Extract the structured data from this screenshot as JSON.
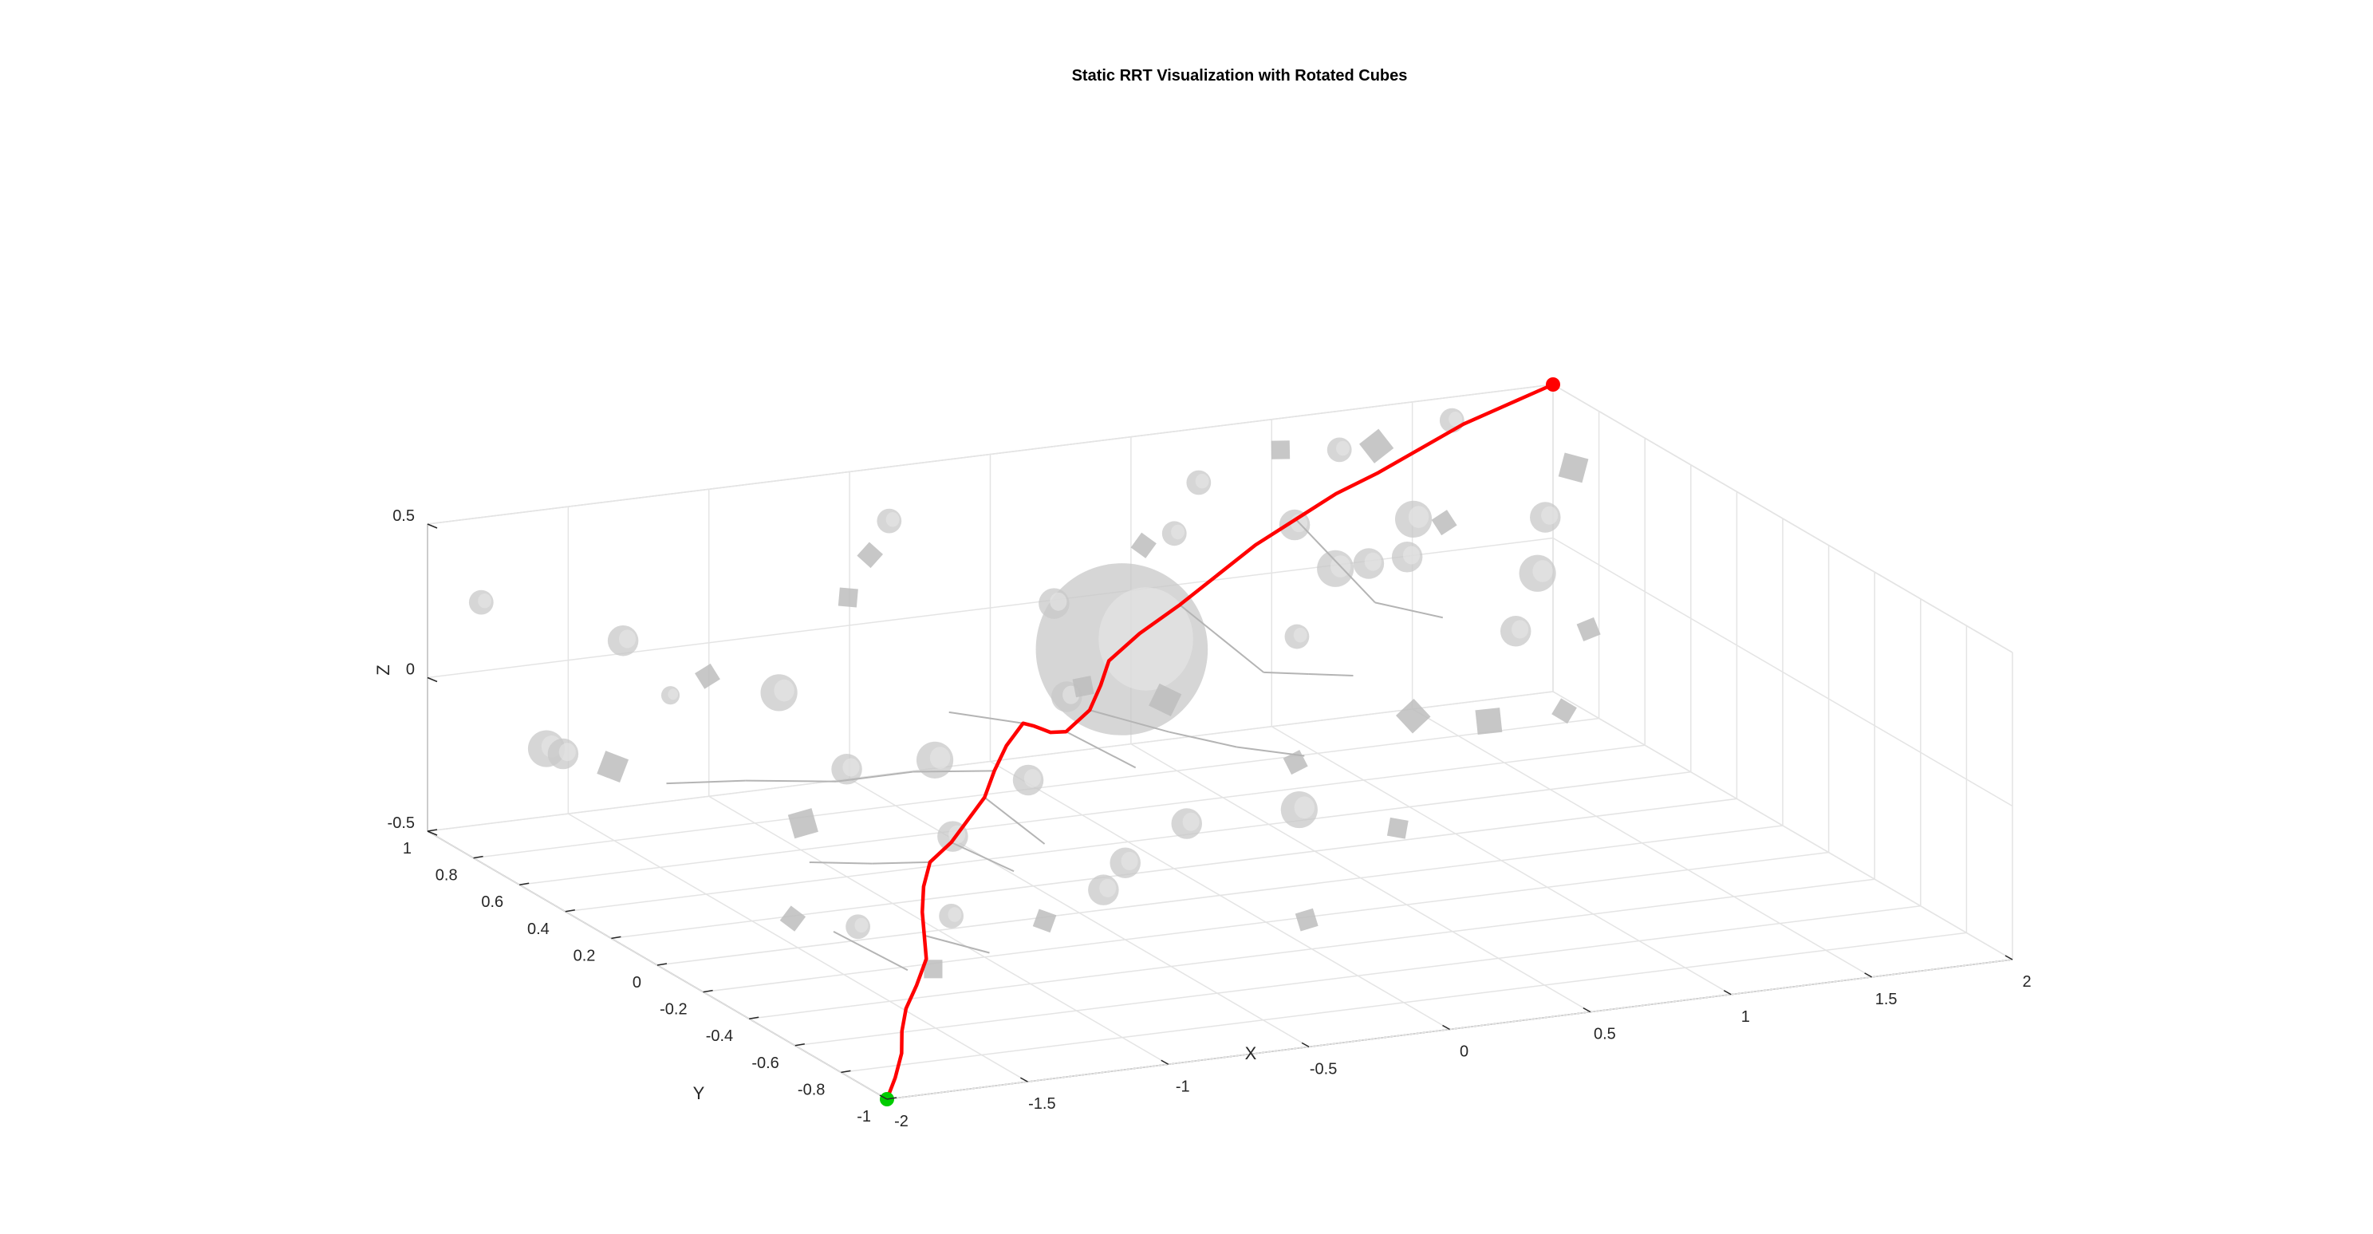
{
  "chart_data": {
    "type": "scatter",
    "title": "Static RRT Visualization with Rotated Cubes",
    "xlabel": "X",
    "ylabel": "Y",
    "zlabel": "Z",
    "xlim": [
      -2,
      2
    ],
    "ylim": [
      -1,
      1
    ],
    "zlim": [
      -0.5,
      0.5
    ],
    "x_ticks": [
      "-2",
      "-1.5",
      "-1",
      "-0.5",
      "0",
      "0.5",
      "1",
      "1.5",
      "2"
    ],
    "y_ticks": [
      "-1",
      "-0.8",
      "-0.6",
      "-0.4",
      "-0.2",
      "0",
      "0.2",
      "0.4",
      "0.6",
      "0.8",
      "1"
    ],
    "z_ticks": [
      "-0.5",
      "0",
      "0.5"
    ],
    "grid": true,
    "start": {
      "x": -2,
      "y": -1,
      "z": -0.5,
      "color": "#00cc00"
    },
    "goal": {
      "x": 2,
      "y": 1,
      "z": 0.5,
      "color": "#ff0000"
    },
    "path_color": "#ff0000",
    "tree_color": "#b4b4b4",
    "obstacle_color": "#c8c8c8",
    "path": [
      [
        -2.0,
        -1.0,
        -0.5
      ],
      [
        -1.93,
        -0.95,
        -0.46
      ],
      [
        -1.85,
        -0.88,
        -0.42
      ],
      [
        -1.8,
        -0.82,
        -0.38
      ],
      [
        -1.72,
        -0.74,
        -0.35
      ],
      [
        -1.65,
        -0.7,
        -0.3
      ],
      [
        -1.55,
        -0.62,
        -0.26
      ],
      [
        -1.5,
        -0.55,
        -0.22
      ],
      [
        -1.45,
        -0.48,
        -0.18
      ],
      [
        -1.38,
        -0.4,
        -0.14
      ],
      [
        -1.3,
        -0.33,
        -0.1
      ],
      [
        -1.2,
        -0.3,
        -0.06
      ],
      [
        -1.1,
        -0.25,
        -0.02
      ],
      [
        -1.0,
        -0.2,
        0.02
      ],
      [
        -0.9,
        -0.12,
        0.06
      ],
      [
        -0.8,
        -0.05,
        0.1
      ],
      [
        -0.7,
        0.0,
        0.14
      ],
      [
        -0.62,
        0.05,
        0.1
      ],
      [
        -0.55,
        0.1,
        0.06
      ],
      [
        -0.48,
        0.15,
        0.02
      ],
      [
        -0.4,
        0.18,
        0.0
      ],
      [
        -0.3,
        0.2,
        0.05
      ],
      [
        -0.22,
        0.25,
        0.1
      ],
      [
        -0.15,
        0.3,
        0.15
      ],
      [
        0.0,
        0.35,
        0.2
      ],
      [
        0.2,
        0.42,
        0.24
      ],
      [
        0.4,
        0.5,
        0.28
      ],
      [
        0.6,
        0.58,
        0.32
      ],
      [
        0.8,
        0.65,
        0.35
      ],
      [
        1.0,
        0.72,
        0.38
      ],
      [
        1.2,
        0.78,
        0.4
      ],
      [
        1.4,
        0.84,
        0.43
      ],
      [
        1.6,
        0.9,
        0.46
      ],
      [
        1.8,
        0.95,
        0.48
      ],
      [
        2.0,
        1.0,
        0.5
      ]
    ],
    "tree_branches": [
      [
        [
          -1.3,
          -0.33,
          -0.1
        ],
        [
          -1.4,
          -0.2,
          -0.15
        ]
      ],
      [
        [
          -1.4,
          -0.2,
          -0.15
        ],
        [
          -1.5,
          -0.05,
          -0.2
        ]
      ],
      [
        [
          -1.2,
          -0.3,
          -0.06
        ],
        [
          -1.1,
          -0.45,
          -0.1
        ]
      ],
      [
        [
          -1.0,
          -0.2,
          0.02
        ],
        [
          -0.95,
          -0.4,
          -0.05
        ]
      ],
      [
        [
          -0.9,
          -0.12,
          0.06
        ],
        [
          -1.05,
          0.05,
          0.0
        ]
      ],
      [
        [
          -1.05,
          0.05,
          0.0
        ],
        [
          -1.2,
          0.2,
          -0.08
        ]
      ],
      [
        [
          -1.2,
          0.2,
          -0.08
        ],
        [
          -1.4,
          0.35,
          -0.12
        ]
      ],
      [
        [
          -1.4,
          0.35,
          -0.12
        ],
        [
          -1.6,
          0.45,
          -0.15
        ]
      ],
      [
        [
          -0.7,
          0.0,
          0.14
        ],
        [
          -0.8,
          0.2,
          0.1
        ]
      ],
      [
        [
          -0.4,
          0.18,
          0.0
        ],
        [
          -0.3,
          0.0,
          -0.05
        ]
      ],
      [
        [
          -0.3,
          0.2,
          0.05
        ],
        [
          -0.1,
          0.1,
          0.0
        ]
      ],
      [
        [
          -0.1,
          0.1,
          0.0
        ],
        [
          0.1,
          0.05,
          -0.05
        ]
      ],
      [
        [
          0.1,
          0.05,
          -0.05
        ],
        [
          0.3,
          0.0,
          -0.08
        ]
      ],
      [
        [
          0.2,
          0.42,
          0.24
        ],
        [
          0.4,
          0.3,
          0.05
        ]
      ],
      [
        [
          0.4,
          0.3,
          0.05
        ],
        [
          0.6,
          0.35,
          0.0
        ]
      ],
      [
        [
          0.6,
          0.35,
          0.0
        ],
        [
          0.8,
          0.4,
          -0.05
        ]
      ],
      [
        [
          0.8,
          0.65,
          0.35
        ],
        [
          1.0,
          0.55,
          0.1
        ]
      ],
      [
        [
          1.0,
          0.55,
          0.1
        ],
        [
          1.2,
          0.5,
          0.05
        ]
      ],
      [
        [
          -1.6,
          -0.6,
          -0.3
        ],
        [
          -1.7,
          -0.4,
          -0.25
        ]
      ],
      [
        [
          -1.5,
          -0.55,
          -0.22
        ],
        [
          -1.35,
          -0.65,
          -0.25
        ]
      ]
    ],
    "spheres": [
      {
        "x": 0.1,
        "y": 0.55,
        "z": 0.05,
        "r": 0.28
      },
      {
        "x": -1.2,
        "y": 0.45,
        "z": 0.1,
        "r": 0.06
      },
      {
        "x": -1.55,
        "y": 0.7,
        "z": 0.2,
        "r": 0.05
      },
      {
        "x": -1.7,
        "y": 0.85,
        "z": -0.2,
        "r": 0.06
      },
      {
        "x": -1.6,
        "y": 0.9,
        "z": -0.25,
        "r": 0.05
      },
      {
        "x": -1.85,
        "y": 0.95,
        "z": 0.25,
        "r": 0.04
      },
      {
        "x": -1.3,
        "y": 0.8,
        "z": -0.05,
        "r": 0.03
      },
      {
        "x": -1.0,
        "y": 0.4,
        "z": -0.15,
        "r": 0.05
      },
      {
        "x": -0.85,
        "y": 0.2,
        "z": -0.05,
        "r": 0.06
      },
      {
        "x": -0.95,
        "y": 0.0,
        "z": -0.2,
        "r": 0.05
      },
      {
        "x": -0.6,
        "y": 0.1,
        "z": -0.1,
        "r": 0.05
      },
      {
        "x": -0.5,
        "y": -0.2,
        "z": -0.25,
        "r": 0.05
      },
      {
        "x": -0.2,
        "y": -0.1,
        "z": -0.2,
        "r": 0.05
      },
      {
        "x": 0.2,
        "y": -0.1,
        "z": -0.2,
        "r": 0.06
      },
      {
        "x": -1.2,
        "y": -0.3,
        "z": -0.3,
        "r": 0.04
      },
      {
        "x": -1.45,
        "y": -0.2,
        "z": -0.35,
        "r": 0.04
      },
      {
        "x": -0.7,
        "y": -0.35,
        "z": -0.25,
        "r": 0.05
      },
      {
        "x": 0.6,
        "y": 0.4,
        "z": 0.1,
        "r": 0.04
      },
      {
        "x": 0.9,
        "y": 0.6,
        "z": 0.2,
        "r": 0.06
      },
      {
        "x": 1.1,
        "y": 0.7,
        "z": 0.15,
        "r": 0.05
      },
      {
        "x": 1.3,
        "y": 0.75,
        "z": 0.25,
        "r": 0.06
      },
      {
        "x": 1.5,
        "y": 0.55,
        "z": -0.05,
        "r": 0.05
      },
      {
        "x": 1.7,
        "y": 0.7,
        "z": 0.05,
        "r": 0.06
      },
      {
        "x": 1.85,
        "y": 0.85,
        "z": 0.15,
        "r": 0.05
      },
      {
        "x": 1.6,
        "y": 0.95,
        "z": 0.45,
        "r": 0.04
      },
      {
        "x": 1.2,
        "y": 0.95,
        "z": 0.4,
        "r": 0.04
      },
      {
        "x": 0.7,
        "y": 0.95,
        "z": 0.35,
        "r": 0.04
      },
      {
        "x": -0.4,
        "y": 0.95,
        "z": 0.35,
        "r": 0.04
      },
      {
        "x": -0.1,
        "y": 0.6,
        "z": 0.2,
        "r": 0.05
      },
      {
        "x": 0.45,
        "y": 0.75,
        "z": 0.3,
        "r": 0.04
      },
      {
        "x": 1.0,
        "y": 0.9,
        "z": 0.2,
        "r": 0.05
      },
      {
        "x": 1.4,
        "y": 0.9,
        "z": 0.05,
        "r": 0.05
      },
      {
        "x": -0.3,
        "y": 0.3,
        "z": 0.05,
        "r": 0.05
      }
    ],
    "cubes": [
      {
        "x": -1.55,
        "y": -0.65,
        "z": -0.28,
        "s": 0.03
      },
      {
        "x": -1.6,
        "y": -0.1,
        "z": -0.35,
        "s": 0.03
      },
      {
        "x": -1.4,
        "y": 0.1,
        "z": -0.15,
        "s": 0.04
      },
      {
        "x": -1.75,
        "y": 0.5,
        "z": -0.1,
        "s": 0.04
      },
      {
        "x": -1.25,
        "y": 0.7,
        "z": 0.05,
        "s": 0.03
      },
      {
        "x": -0.75,
        "y": 0.7,
        "z": 0.25,
        "s": 0.03
      },
      {
        "x": -0.55,
        "y": 0.85,
        "z": 0.3,
        "s": 0.03
      },
      {
        "x": -0.2,
        "y": 0.35,
        "z": 0.05,
        "s": 0.03
      },
      {
        "x": 0.05,
        "y": 0.3,
        "z": 0.0,
        "s": 0.04
      },
      {
        "x": 0.35,
        "y": 0.1,
        "z": -0.15,
        "s": 0.03
      },
      {
        "x": 0.55,
        "y": -0.1,
        "z": -0.3,
        "s": 0.03
      },
      {
        "x": 0.85,
        "y": 0.2,
        "z": -0.1,
        "s": 0.04
      },
      {
        "x": 1.2,
        "y": 0.3,
        "z": -0.2,
        "s": 0.04
      },
      {
        "x": 1.55,
        "y": 0.4,
        "z": -0.25,
        "s": 0.03
      },
      {
        "x": 1.8,
        "y": 0.6,
        "z": -0.1,
        "s": 0.03
      },
      {
        "x": 1.95,
        "y": 0.85,
        "z": 0.3,
        "s": 0.04
      },
      {
        "x": 1.25,
        "y": 0.85,
        "z": 0.45,
        "s": 0.04
      },
      {
        "x": 0.95,
        "y": 0.9,
        "z": 0.45,
        "s": 0.03
      },
      {
        "x": 0.3,
        "y": 0.7,
        "z": 0.3,
        "s": 0.03
      },
      {
        "x": -0.1,
        "y": -0.5,
        "z": -0.35,
        "s": 0.03
      },
      {
        "x": -0.95,
        "y": -0.4,
        "z": -0.3,
        "s": 0.03
      },
      {
        "x": 1.45,
        "y": 0.8,
        "z": 0.2,
        "s": 0.03
      }
    ]
  }
}
